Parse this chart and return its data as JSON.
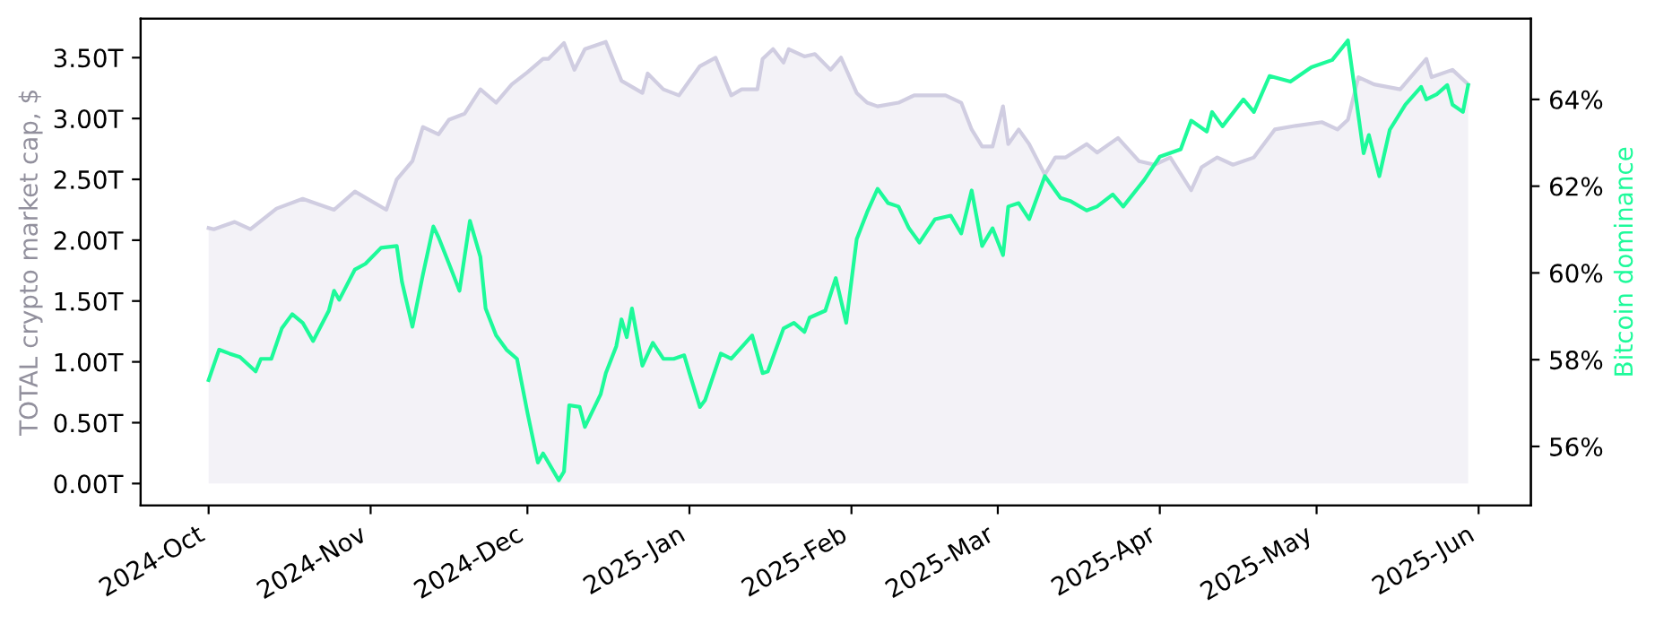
{
  "chart_data": {
    "type": "area",
    "ylabel": "TOTAL crypto market cap, $",
    "y2label": "Bitcoin dominance",
    "xlim": [
      "2024-09-18",
      "2025-06-11"
    ],
    "xticks": [
      {
        "value": "2024-10-01",
        "label": "2024-Oct"
      },
      {
        "value": "2024-11-01",
        "label": "2024-Nov"
      },
      {
        "value": "2024-12-01",
        "label": "2024-Dec"
      },
      {
        "value": "2025-01-01",
        "label": "2025-Jan"
      },
      {
        "value": "2025-02-01",
        "label": "2025-Feb"
      },
      {
        "value": "2025-03-01",
        "label": "2025-Mar"
      },
      {
        "value": "2025-04-01",
        "label": "2025-Apr"
      },
      {
        "value": "2025-05-01",
        "label": "2025-May"
      },
      {
        "value": "2025-06-01",
        "label": "2025-Jun"
      }
    ],
    "ylim": [
      -0.18,
      3.82
    ],
    "yticks": [
      {
        "value": 0,
        "label": "0.00T"
      },
      {
        "value": 0.5,
        "label": "0.50T"
      },
      {
        "value": 1,
        "label": "1.00T"
      },
      {
        "value": 1.5,
        "label": "1.50T"
      },
      {
        "value": 2,
        "label": "2.00T"
      },
      {
        "value": 2.5,
        "label": "2.50T"
      },
      {
        "value": 3,
        "label": "3.00T"
      },
      {
        "value": 3.5,
        "label": "3.50T"
      }
    ],
    "y2lim": [
      54.64,
      65.86
    ],
    "y2ticks": [
      {
        "value": 56,
        "label": "56%"
      },
      {
        "value": 58,
        "label": "58%"
      },
      {
        "value": 60,
        "label": "60%"
      },
      {
        "value": 62,
        "label": "62%"
      },
      {
        "value": 64,
        "label": "64%"
      }
    ],
    "grid": false,
    "legend": false,
    "series": [
      {
        "color": "#d0cde1",
        "x": [
          "2024-10-01",
          "2024-10-02",
          "2024-10-06",
          "2024-10-09",
          "2024-10-14",
          "2024-10-19",
          "2024-10-25",
          "2024-10-29",
          "2024-11-04",
          "2024-11-06",
          "2024-11-09",
          "2024-11-11",
          "2024-11-14",
          "2024-11-16",
          "2024-11-19",
          "2024-11-22",
          "2024-11-25",
          "2024-11-28",
          "2024-12-01",
          "2024-12-04",
          "2024-12-05",
          "2024-12-08",
          "2024-12-10",
          "2024-12-12",
          "2024-12-16",
          "2024-12-19",
          "2024-12-23",
          "2024-12-24",
          "2024-12-27",
          "2024-12-30",
          "2025-01-03",
          "2025-01-06",
          "2025-01-09",
          "2025-01-11",
          "2025-01-14",
          "2025-01-15",
          "2025-01-17",
          "2025-01-19",
          "2025-01-20",
          "2025-01-23",
          "2025-01-25",
          "2025-01-28",
          "2025-01-30",
          "2025-02-02",
          "2025-02-04",
          "2025-02-06",
          "2025-02-10",
          "2025-02-13",
          "2025-02-19",
          "2025-02-22",
          "2025-02-24",
          "2025-02-26",
          "2025-02-28",
          "2025-03-02",
          "2025-03-03",
          "2025-03-05",
          "2025-03-07",
          "2025-03-10",
          "2025-03-12",
          "2025-03-14",
          "2025-03-18",
          "2025-03-20",
          "2025-03-24",
          "2025-03-28",
          "2025-03-31",
          "2025-04-03",
          "2025-04-07",
          "2025-04-09",
          "2025-04-12",
          "2025-04-15",
          "2025-04-19",
          "2025-04-23",
          "2025-04-27",
          "2025-05-02",
          "2025-05-05",
          "2025-05-07",
          "2025-05-09",
          "2025-05-12",
          "2025-05-17",
          "2025-05-22",
          "2025-05-23",
          "2025-05-27",
          "2025-05-30"
        ],
        "values": [
          2.1,
          2.09,
          2.15,
          2.09,
          2.26,
          2.34,
          2.25,
          2.4,
          2.25,
          2.5,
          2.65,
          2.93,
          2.87,
          2.99,
          3.04,
          3.24,
          3.13,
          3.28,
          3.38,
          3.49,
          3.49,
          3.62,
          3.4,
          3.57,
          3.63,
          3.31,
          3.21,
          3.37,
          3.24,
          3.19,
          3.43,
          3.5,
          3.19,
          3.24,
          3.24,
          3.49,
          3.57,
          3.46,
          3.57,
          3.51,
          3.53,
          3.4,
          3.5,
          3.21,
          3.13,
          3.1,
          3.13,
          3.19,
          3.19,
          3.13,
          2.91,
          2.77,
          2.77,
          3.1,
          2.79,
          2.91,
          2.79,
          2.54,
          2.68,
          2.68,
          2.79,
          2.72,
          2.84,
          2.65,
          2.62,
          2.68,
          2.41,
          2.6,
          2.68,
          2.62,
          2.68,
          2.91,
          2.94,
          2.97,
          2.91,
          2.99,
          3.34,
          3.28,
          3.24,
          3.49,
          3.34,
          3.4,
          3.28
        ]
      },
      {
        "type": "line",
        "axis": "y2",
        "color": "#1dfa9a",
        "x": [
          "2024-10-01",
          "2024-10-03",
          "2024-10-05",
          "2024-10-07",
          "2024-10-10",
          "2024-10-11",
          "2024-10-13",
          "2024-10-15",
          "2024-10-17",
          "2024-10-19",
          "2024-10-21",
          "2024-10-24",
          "2024-10-25",
          "2024-10-26",
          "2024-10-29",
          "2024-10-31",
          "2024-11-03",
          "2024-11-06",
          "2024-11-07",
          "2024-11-09",
          "2024-11-11",
          "2024-11-13",
          "2024-11-14",
          "2024-11-16",
          "2024-11-18",
          "2024-11-20",
          "2024-11-22",
          "2024-11-23",
          "2024-11-25",
          "2024-11-27",
          "2024-11-29",
          "2024-12-01",
          "2024-12-03",
          "2024-12-04",
          "2024-12-07",
          "2024-12-08",
          "2024-12-09",
          "2024-12-11",
          "2024-12-12",
          "2024-12-15",
          "2024-12-16",
          "2024-12-18",
          "2024-12-19",
          "2024-12-20",
          "2024-12-21",
          "2024-12-23",
          "2024-12-25",
          "2024-12-27",
          "2024-12-29",
          "2024-12-31",
          "2025-01-01",
          "2025-01-03",
          "2025-01-04",
          "2025-01-07",
          "2025-01-09",
          "2025-01-13",
          "2025-01-15",
          "2025-01-16",
          "2025-01-19",
          "2025-01-21",
          "2025-01-23",
          "2025-01-24",
          "2025-01-27",
          "2025-01-29",
          "2025-01-31",
          "2025-02-02",
          "2025-02-04",
          "2025-02-06",
          "2025-02-08",
          "2025-02-10",
          "2025-02-12",
          "2025-02-14",
          "2025-02-17",
          "2025-02-20",
          "2025-02-22",
          "2025-02-24",
          "2025-02-26",
          "2025-02-28",
          "2025-03-02",
          "2025-03-03",
          "2025-03-05",
          "2025-03-07",
          "2025-03-10",
          "2025-03-13",
          "2025-03-15",
          "2025-03-18",
          "2025-03-20",
          "2025-03-23",
          "2025-03-25",
          "2025-03-29",
          "2025-04-01",
          "2025-04-05",
          "2025-04-07",
          "2025-04-10",
          "2025-04-11",
          "2025-04-13",
          "2025-04-17",
          "2025-04-19",
          "2025-04-22",
          "2025-04-26",
          "2025-04-30",
          "2025-05-04",
          "2025-05-07",
          "2025-05-10",
          "2025-05-11",
          "2025-05-13",
          "2025-05-15",
          "2025-05-18",
          "2025-05-21",
          "2025-05-22",
          "2025-05-24",
          "2025-05-26",
          "2025-05-27",
          "2025-05-29",
          "2025-05-30"
        ],
        "values": [
          57.53,
          58.23,
          58.14,
          58.06,
          57.73,
          58.02,
          58.02,
          58.72,
          59.05,
          58.85,
          58.43,
          59.13,
          59.59,
          59.38,
          60.08,
          60.21,
          60.58,
          60.62,
          59.79,
          58.76,
          59.96,
          61.07,
          60.82,
          60.21,
          59.59,
          61.2,
          60.37,
          59.18,
          58.56,
          58.23,
          58.02,
          56.78,
          55.63,
          55.84,
          55.22,
          55.42,
          56.95,
          56.91,
          56.45,
          57.2,
          57.69,
          58.31,
          58.93,
          58.52,
          59.18,
          57.86,
          58.39,
          58.02,
          58.02,
          58.1,
          57.69,
          56.91,
          57.07,
          58.14,
          58.02,
          58.56,
          57.69,
          57.73,
          58.72,
          58.85,
          58.64,
          58.97,
          59.13,
          59.88,
          58.85,
          60.78,
          61.4,
          61.94,
          61.61,
          61.53,
          61.03,
          60.7,
          61.24,
          61.32,
          60.91,
          61.9,
          60.62,
          61.03,
          60.41,
          61.53,
          61.61,
          61.24,
          62.23,
          61.73,
          61.65,
          61.44,
          61.53,
          61.81,
          61.53,
          62.14,
          62.68,
          62.85,
          63.51,
          63.26,
          63.71,
          63.38,
          64.0,
          63.71,
          64.54,
          64.41,
          64.74,
          64.91,
          65.36,
          62.76,
          63.18,
          62.23,
          63.3,
          63.88,
          64.29,
          64.0,
          64.12,
          64.33,
          63.88,
          63.71,
          64.33
        ]
      }
    ]
  }
}
